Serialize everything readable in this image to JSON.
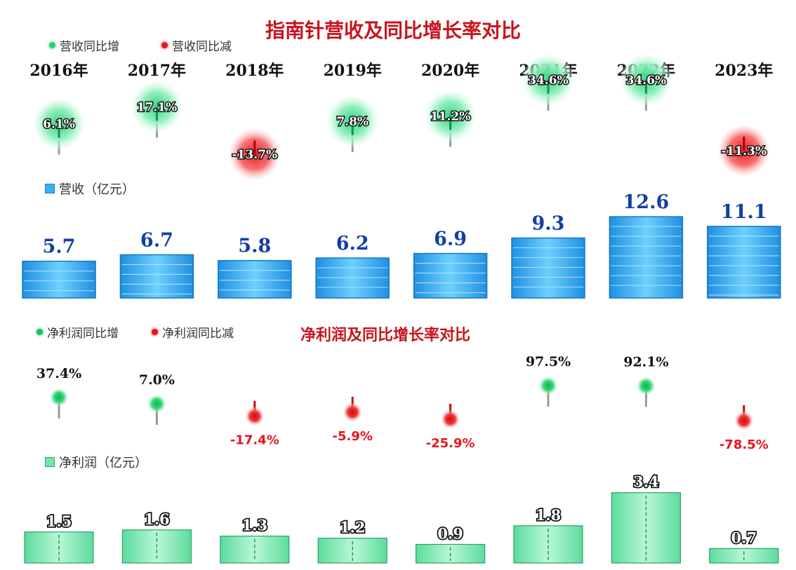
{
  "chart_data": [
    {
      "type": "bar",
      "title": "指南针营收及同比增长率对比",
      "categories": [
        "2016年",
        "2017年",
        "2018年",
        "2019年",
        "2020年",
        "2021年",
        "2022年",
        "2023年"
      ],
      "series": [
        {
          "name": "营收（亿元）",
          "values": [
            5.7,
            6.7,
            5.8,
            6.2,
            6.9,
            9.3,
            12.6,
            11.1
          ]
        },
        {
          "name": "营收同比增",
          "values": [
            6.1,
            17.1,
            -13.7,
            7.8,
            11.2,
            34.6,
            34.6,
            -11.3
          ],
          "unit": "%"
        }
      ],
      "legend": {
        "increase": "营收同比增",
        "decrease": "营收同比减",
        "bar": "营收（亿元）"
      },
      "colors": {
        "bar": "#1a8fe0",
        "increase": "#2ecf7a",
        "decrease": "#e8141e",
        "title": "#c8141e"
      }
    },
    {
      "type": "bar",
      "title": "净利润及同比增长率对比",
      "categories": [
        "2016年",
        "2017年",
        "2018年",
        "2019年",
        "2020年",
        "2021年",
        "2022年",
        "2023年"
      ],
      "series": [
        {
          "name": "净利润（亿元）",
          "values": [
            1.5,
            1.6,
            1.3,
            1.2,
            0.9,
            1.8,
            3.4,
            0.7
          ]
        },
        {
          "name": "净利润同比增",
          "values": [
            37.4,
            7.0,
            -17.4,
            -5.9,
            -25.9,
            97.5,
            92.1,
            -78.5
          ],
          "unit": "%"
        }
      ],
      "legend": {
        "increase": "净利润同比增",
        "decrease": "净利润同比减",
        "bar": "净利润（亿元）"
      },
      "colors": {
        "bar": "#6fe6ac",
        "increase": "#15c45a",
        "decrease": "#e8141e",
        "title": "#c8141e"
      }
    }
  ]
}
